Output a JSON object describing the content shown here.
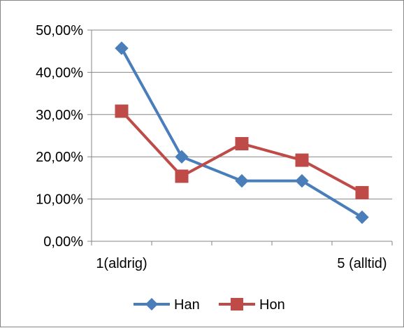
{
  "chart_data": {
    "type": "line",
    "x": [
      1,
      2,
      3,
      4,
      5
    ],
    "x_tick_labels": [
      "1(aldrig)",
      "",
      "",
      "",
      "5 (alltid)"
    ],
    "y_tick_labels": [
      "0,00%",
      "10,00%",
      "20,00%",
      "30,00%",
      "40,00%",
      "50,00%"
    ],
    "ylim": [
      0,
      50
    ],
    "grid": true,
    "legend_position": "bottom",
    "series": [
      {
        "name": "Han",
        "color": "#4a7ebb",
        "marker": "diamond",
        "values": [
          45.7,
          20.0,
          14.3,
          14.3,
          5.7
        ]
      },
      {
        "name": "Hon",
        "color": "#be4b48",
        "marker": "square",
        "values": [
          30.8,
          15.4,
          23.1,
          19.2,
          11.5
        ]
      }
    ]
  }
}
